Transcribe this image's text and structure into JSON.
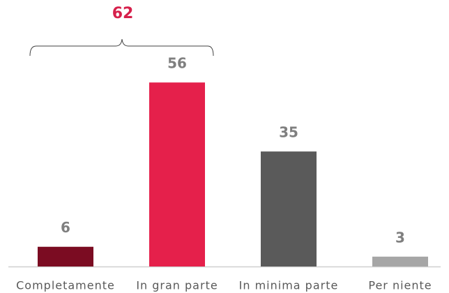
{
  "chart_data": {
    "type": "bar",
    "categories": [
      "Completamente",
      "In gran parte",
      "In minima parte",
      "Per niente"
    ],
    "values": [
      6,
      56,
      35,
      3
    ],
    "colors": [
      "#7b0c22",
      "#e5204b",
      "#5a5a5a",
      "#a6a6a6"
    ],
    "annotation": 62,
    "annotation_color": "#d6204b"
  }
}
